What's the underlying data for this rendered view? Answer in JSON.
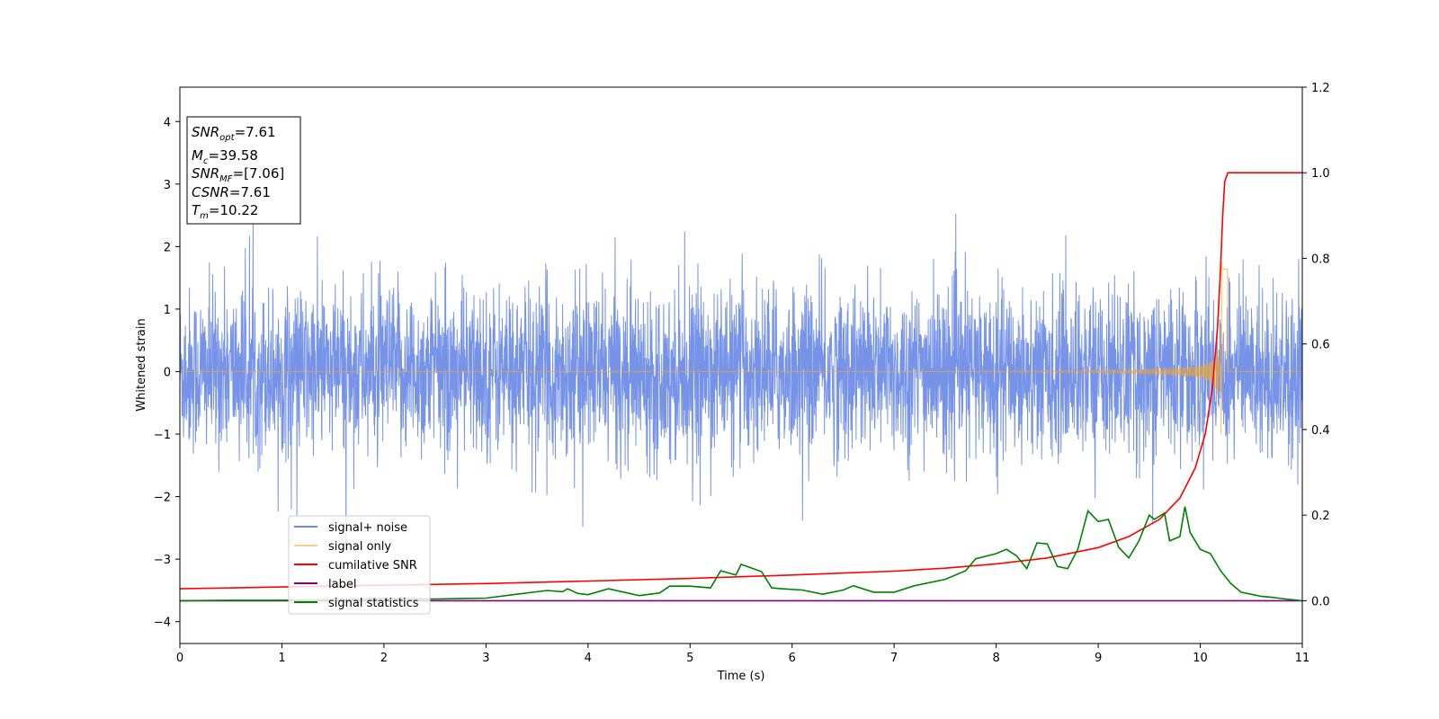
{
  "chart_data": {
    "type": "line",
    "xlabel": "Time (s)",
    "ylabel": "Whitened strain",
    "xlim": [
      0,
      11
    ],
    "ylim": [
      -4.35,
      4.55
    ],
    "y2lim": [
      -0.1,
      1.2
    ],
    "grid": false,
    "legend_position": "lower-left",
    "x_ticks": [
      "0",
      "1",
      "2",
      "3",
      "4",
      "5",
      "6",
      "7",
      "8",
      "9",
      "10",
      "11"
    ],
    "y_ticks": [
      "−4",
      "−3",
      "−2",
      "−1",
      "0",
      "1",
      "2",
      "3",
      "4"
    ],
    "y2_ticks": [
      "0.0",
      "0.2",
      "0.4",
      "0.6",
      "0.8",
      "1.0",
      "1.2"
    ],
    "annotation": {
      "snr_opt": {
        "sym": "SNR",
        "sub": "opt",
        "value": "=7.61"
      },
      "mc": {
        "sym": "M",
        "sub": "c",
        "value": "=39.58"
      },
      "snr_mf": {
        "sym": "SNR",
        "sub": "MF",
        "value": "=[7.06]"
      },
      "csnr": {
        "sym": "CSNR",
        "value": "=7.61"
      },
      "tm": {
        "sym": "T",
        "sub": "m",
        "value": "=10.22"
      }
    },
    "series": [
      {
        "name": "signal+ noise",
        "color": "#6a8ae6",
        "axis": "left",
        "description_values": {
          "typical_amplitude": 1.2,
          "peak_amplitude": 2.9
        }
      },
      {
        "name": "signal only",
        "color": "#f5a623",
        "axis": "left",
        "description_values": {
          "merger_time": 10.22,
          "peak_amplitude": 2.0
        }
      },
      {
        "name": "cumilative SNR",
        "color": "#ff0000",
        "axis": "right",
        "x": [
          0,
          1,
          2,
          3,
          4,
          5,
          6,
          7,
          7.5,
          8,
          8.5,
          9,
          9.3,
          9.6,
          9.8,
          9.95,
          10.05,
          10.12,
          10.17,
          10.2,
          10.22,
          10.24,
          10.27,
          11
        ],
        "values": [
          0.028,
          0.032,
          0.036,
          0.04,
          0.046,
          0.052,
          0.06,
          0.069,
          0.076,
          0.086,
          0.1,
          0.124,
          0.15,
          0.19,
          0.24,
          0.31,
          0.39,
          0.5,
          0.64,
          0.78,
          0.9,
          0.98,
          1.0,
          1.0
        ]
      },
      {
        "name": "label",
        "color": "#800080",
        "axis": "right",
        "x": [
          0,
          11
        ],
        "values": [
          0,
          0
        ]
      },
      {
        "name": "signal statistics",
        "color": "#008000",
        "axis": "right",
        "x": [
          0,
          0.5,
          1,
          1.5,
          2,
          2.5,
          3,
          3.3,
          3.6,
          3.75,
          3.8,
          3.9,
          4.0,
          4.2,
          4.5,
          4.7,
          4.8,
          5.0,
          5.2,
          5.3,
          5.45,
          5.5,
          5.7,
          5.8,
          5.9,
          6.1,
          6.3,
          6.5,
          6.6,
          6.8,
          7.0,
          7.2,
          7.5,
          7.7,
          7.8,
          8.0,
          8.1,
          8.2,
          8.3,
          8.4,
          8.5,
          8.6,
          8.7,
          8.8,
          8.9,
          9.0,
          9.1,
          9.2,
          9.3,
          9.4,
          9.5,
          9.55,
          9.65,
          9.7,
          9.8,
          9.85,
          9.9,
          10.0,
          10.1,
          10.2,
          10.3,
          10.4,
          10.5,
          10.6,
          10.7,
          10.8,
          11
        ],
        "values": [
          0,
          0.001,
          0.001,
          0.002,
          0.005,
          0.004,
          0.006,
          0.015,
          0.024,
          0.021,
          0.028,
          0.017,
          0.014,
          0.028,
          0.012,
          0.018,
          0.034,
          0.034,
          0.03,
          0.07,
          0.06,
          0.085,
          0.068,
          0.03,
          0.028,
          0.025,
          0.015,
          0.025,
          0.035,
          0.02,
          0.02,
          0.035,
          0.05,
          0.07,
          0.098,
          0.11,
          0.12,
          0.105,
          0.075,
          0.135,
          0.133,
          0.08,
          0.075,
          0.12,
          0.21,
          0.185,
          0.19,
          0.125,
          0.1,
          0.14,
          0.2,
          0.19,
          0.205,
          0.14,
          0.15,
          0.22,
          0.16,
          0.12,
          0.11,
          0.07,
          0.04,
          0.02,
          0.015,
          0.01,
          0.008,
          0.005,
          0.0
        ]
      }
    ]
  }
}
